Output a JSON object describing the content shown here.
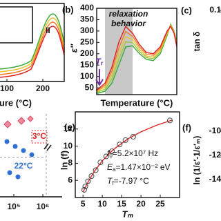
{
  "chart_data": [
    {
      "type": "line",
      "label": "(b)",
      "x_label": "Temperature (°C)",
      "y_label": "ε″",
      "x": [
        -64,
        -40,
        -20,
        0,
        20,
        40,
        60,
        80,
        100,
        120,
        140,
        150,
        160,
        168
      ],
      "series": [
        {
          "color": "#3aa83a",
          "values": [
            25,
            35,
            70,
            150,
            230,
            235,
            200,
            175,
            170,
            200,
            280,
            330,
            300,
            250
          ]
        },
        {
          "color": "#9cc83a",
          "values": [
            29,
            44,
            88,
            175,
            253,
            249,
            210,
            183,
            178,
            208,
            285,
            328,
            298,
            245
          ]
        },
        {
          "color": "#e8c030",
          "values": [
            33,
            53,
            105,
            200,
            275,
            263,
            220,
            190,
            185,
            215,
            290,
            325,
            295,
            240
          ]
        },
        {
          "color": "#f07a28",
          "values": [
            36,
            61,
            123,
            225,
            298,
            276,
            230,
            198,
            193,
            223,
            295,
            323,
            293,
            235
          ]
        },
        {
          "color": "#e02020",
          "values": [
            40,
            70,
            140,
            250,
            320,
            290,
            240,
            205,
            200,
            230,
            300,
            320,
            290,
            230
          ]
        }
      ],
      "xlim": [
        -64,
        168
      ],
      "ylim": [
        20,
        400
      ],
      "yticks": [
        50,
        100,
        150,
        200,
        250,
        300,
        350,
        400
      ],
      "shade": [
        -40,
        40
      ],
      "shade_color": "#c8c8c8",
      "annotation": [
        "relaxation",
        "behavior"
      ],
      "marker_label": "Tᵣ",
      "marker_color": "#7030a0"
    },
    {
      "type": "scatter",
      "label": "(e)",
      "x_label": "Tₘ",
      "y_label": "ln (f)",
      "x": [
        5.3,
        5.6,
        6.3,
        7.2,
        8.3,
        9.5,
        11,
        12.5,
        14.5,
        16,
        18,
        27.5
      ],
      "values": [
        4.9,
        5.3,
        5.9,
        6.5,
        7.2,
        8.1,
        8.8,
        9.4,
        10.2,
        10.7,
        11.1,
        13.0
      ],
      "color": "#444444",
      "fit": {
        "x": [
          5,
          6,
          7,
          8,
          10,
          12,
          14,
          17,
          20,
          24,
          28
        ],
        "values": [
          4.62,
          5.56,
          6.37,
          7.09,
          8.28,
          9.23,
          10.0,
          10.94,
          11.67,
          12.43,
          13.03
        ]
      },
      "fit_color": "#e02020",
      "xlim": [
        3,
        30
      ],
      "ylim": [
        4,
        14
      ],
      "xticks": [
        5,
        10,
        15,
        20,
        25
      ],
      "yticks": [
        6,
        8,
        10,
        12
      ],
      "annotations": [
        {
          "main": "f",
          "sub": "0",
          "rest": "=5.2×10⁷ Hz"
        },
        {
          "main": "E",
          "sub": "a",
          "rest": "=1.47×10⁻² eV"
        },
        {
          "main": "T",
          "sub": "f",
          "rest": "=-7.97 °C"
        }
      ]
    }
  ],
  "panel_a": {
    "annotation": "II",
    "x_label": "Temperature (°C)",
    "xticks": [
      100,
      200
    ]
  },
  "panel_c": {
    "label": "(c)",
    "y_label": "tan δ",
    "yticks": [
      0.1
    ]
  },
  "panel_d": {
    "annotations": [
      "3°C",
      "22°C"
    ],
    "xticks": [
      {
        "value": 100000,
        "label": "10⁵"
      },
      {
        "value": 1000000,
        "label": "10⁶"
      }
    ]
  },
  "panel_f": {
    "label": "(f)",
    "y_label": "ln (1/ε′-1/ε′ₘ)",
    "yticks": [
      -10,
      -12,
      -14
    ]
  }
}
